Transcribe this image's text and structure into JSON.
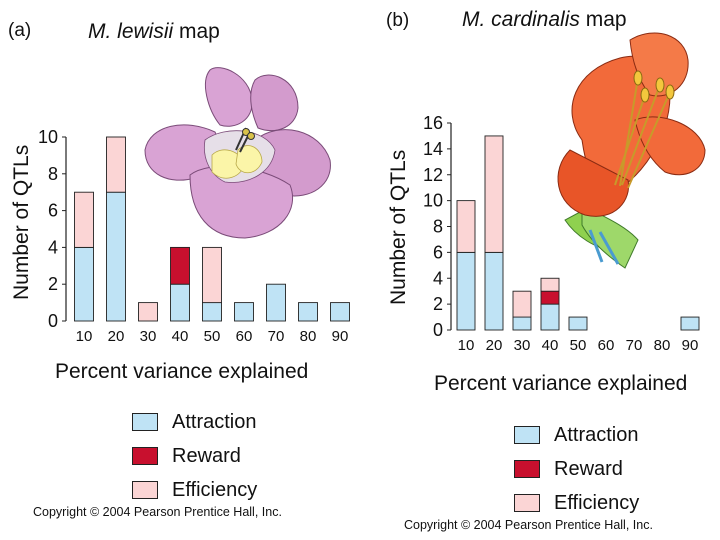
{
  "panel_a": {
    "label": "(a)",
    "title_species": "M. lewisii",
    "title_suffix": " map",
    "ylabel": "Number of QTLs",
    "xlabel": "Percent variance explained",
    "copyright": "Copyright © 2004 Pearson Prentice Hall, Inc."
  },
  "panel_b": {
    "label": "(b)",
    "title_species": "M. cardinalis",
    "title_suffix": " map",
    "ylabel": "Number of QTLs",
    "xlabel": "Percent variance explained",
    "copyright": "Copyright © 2004 Pearson Prentice Hall, Inc."
  },
  "legend": [
    {
      "label": "Attraction",
      "color": "#bfe3f5"
    },
    {
      "label": "Reward",
      "color": "#c8102e"
    },
    {
      "label": "Efficiency",
      "color": "#fbd5d5"
    }
  ],
  "chart_data": [
    {
      "type": "bar",
      "stacked": true,
      "title": "M. lewisii map",
      "xlabel": "Percent variance explained",
      "ylabel": "Number of QTLs",
      "categories": [
        "10",
        "20",
        "30",
        "40",
        "50",
        "60",
        "70",
        "80",
        "90"
      ],
      "series": [
        {
          "name": "Attraction",
          "color": "#bfe3f5",
          "values": [
            4,
            7,
            0,
            2,
            1,
            1,
            2,
            1,
            1
          ]
        },
        {
          "name": "Reward",
          "color": "#c8102e",
          "values": [
            0,
            0,
            0,
            2,
            0,
            0,
            0,
            0,
            0
          ]
        },
        {
          "name": "Efficiency",
          "color": "#fbd5d5",
          "values": [
            3,
            3,
            1,
            0,
            3,
            0,
            0,
            0,
            0
          ]
        }
      ],
      "ylim": [
        0,
        10
      ],
      "yticks": [
        0,
        2,
        4,
        6,
        8,
        10
      ]
    },
    {
      "type": "bar",
      "stacked": true,
      "title": "M. cardinalis map",
      "xlabel": "Percent variance explained",
      "ylabel": "Number of QTLs",
      "categories": [
        "10",
        "20",
        "30",
        "40",
        "50",
        "60",
        "70",
        "80",
        "90"
      ],
      "series": [
        {
          "name": "Attraction",
          "color": "#bfe3f5",
          "values": [
            6,
            6,
            1,
            2,
            1,
            0,
            0,
            0,
            1
          ]
        },
        {
          "name": "Reward",
          "color": "#c8102e",
          "values": [
            0,
            0,
            0,
            1,
            0,
            0,
            0,
            0,
            0
          ]
        },
        {
          "name": "Efficiency",
          "color": "#fbd5d5",
          "values": [
            4,
            9,
            2,
            1,
            0,
            0,
            0,
            0,
            0
          ]
        }
      ],
      "ylim": [
        0,
        16
      ],
      "yticks": [
        0,
        2,
        4,
        6,
        8,
        10,
        12,
        14,
        16
      ]
    }
  ]
}
